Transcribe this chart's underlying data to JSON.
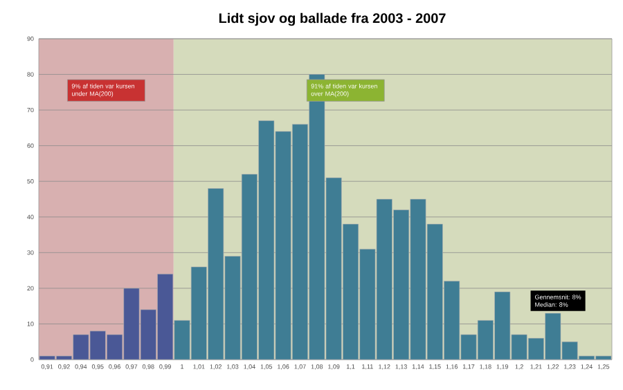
{
  "chart_data": {
    "type": "bar",
    "title": "Lidt sjov og ballade fra 2003 - 2007",
    "categories": [
      "0,91",
      "0,92",
      "0,94",
      "0,95",
      "0,96",
      "0,97",
      "0,98",
      "0,99",
      "1",
      "1,01",
      "1,02",
      "1,03",
      "1,04",
      "1,05",
      "1,06",
      "1,07",
      "1,08",
      "1,09",
      "1,1",
      "1,11",
      "1,12",
      "1,13",
      "1,14",
      "1,15",
      "1,16",
      "1,17",
      "1,18",
      "1,19",
      "1,2",
      "1,21",
      "1,22",
      "1,23",
      "1,24",
      "1,25"
    ],
    "values": [
      1,
      1,
      7,
      8,
      7,
      20,
      14,
      24,
      11,
      26,
      48,
      29,
      52,
      67,
      64,
      66,
      80,
      51,
      38,
      31,
      45,
      42,
      45,
      38,
      22,
      7,
      11,
      19,
      7,
      6,
      13,
      5,
      1,
      1
    ],
    "colors": [
      "#4a5896",
      "#4a5896",
      "#4a5896",
      "#4a5896",
      "#4a5896",
      "#4a5896",
      "#4a5896",
      "#4a5896",
      "#3f7d94",
      "#3f7d94",
      "#3f7d94",
      "#3f7d94",
      "#3f7d94",
      "#3f7d94",
      "#3f7d94",
      "#3f7d94",
      "#3f7d94",
      "#3f7d94",
      "#3f7d94",
      "#3f7d94",
      "#3f7d94",
      "#3f7d94",
      "#3f7d94",
      "#3f7d94",
      "#3f7d94",
      "#3f7d94",
      "#3f7d94",
      "#3f7d94",
      "#3f7d94",
      "#3f7d94",
      "#3f7d94",
      "#3f7d94",
      "#3f7d94",
      "#3f7d94"
    ],
    "ylim": [
      0,
      90
    ],
    "yticks": [
      0,
      10,
      20,
      30,
      40,
      50,
      60,
      70,
      80,
      90
    ],
    "grid": "y",
    "bands": [
      {
        "axis": "x",
        "from": "0,91",
        "to": "0,99",
        "color": "#d8b0b0"
      },
      {
        "axis": "x",
        "from": "1",
        "to": "1,25",
        "color": "#d5dbbc"
      }
    ],
    "annotations": [
      "9% af tiden var kursen under MA(200)",
      "91% af tiden var kursen over MA(200)",
      "Gennemsnit: 8%",
      "Median: 8%"
    ]
  }
}
